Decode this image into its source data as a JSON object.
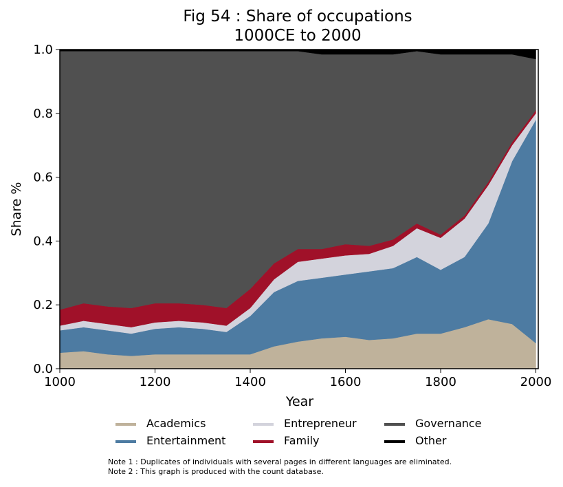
{
  "chart_data": {
    "type": "area",
    "stacked": true,
    "title": "Fig 54 : Share of occupations",
    "subtitle": "1000CE to 2000",
    "xlabel": "Year",
    "ylabel": "Share %",
    "xlim": [
      1000,
      2005
    ],
    "ylim": [
      0,
      1
    ],
    "xticks": [
      "1000",
      "1200",
      "1400",
      "1600",
      "1800",
      "2000"
    ],
    "yticks": [
      "0.0",
      "0.2",
      "0.4",
      "0.6",
      "0.8",
      "1.0"
    ],
    "grid": false,
    "legend_position": "bottom",
    "x": [
      1000,
      1050,
      1100,
      1150,
      1200,
      1250,
      1300,
      1350,
      1400,
      1450,
      1500,
      1550,
      1600,
      1650,
      1700,
      1750,
      1800,
      1850,
      1900,
      1950,
      2000
    ],
    "series": [
      {
        "name": "Academics",
        "color": "#bfb29b",
        "values": [
          0.05,
          0.055,
          0.045,
          0.04,
          0.045,
          0.045,
          0.045,
          0.045,
          0.045,
          0.07,
          0.085,
          0.095,
          0.1,
          0.09,
          0.095,
          0.11,
          0.11,
          0.13,
          0.155,
          0.14,
          0.08
        ]
      },
      {
        "name": "Entertainment",
        "color": "#4d7ba2",
        "values": [
          0.07,
          0.075,
          0.075,
          0.07,
          0.08,
          0.085,
          0.08,
          0.07,
          0.12,
          0.17,
          0.19,
          0.19,
          0.195,
          0.215,
          0.22,
          0.24,
          0.2,
          0.22,
          0.3,
          0.51,
          0.7
        ]
      },
      {
        "name": "Entrepreneur",
        "color": "#d3d3dc",
        "values": [
          0.015,
          0.02,
          0.02,
          0.02,
          0.02,
          0.02,
          0.02,
          0.02,
          0.025,
          0.04,
          0.06,
          0.06,
          0.06,
          0.055,
          0.07,
          0.09,
          0.1,
          0.12,
          0.12,
          0.05,
          0.02
        ]
      },
      {
        "name": "Family",
        "color": "#a01129",
        "values": [
          0.05,
          0.055,
          0.055,
          0.06,
          0.06,
          0.055,
          0.055,
          0.055,
          0.06,
          0.05,
          0.04,
          0.03,
          0.035,
          0.025,
          0.02,
          0.015,
          0.01,
          0.01,
          0.01,
          0.01,
          0.01
        ]
      },
      {
        "name": "Governance",
        "color": "#505050",
        "values": [
          0.81,
          0.79,
          0.8,
          0.805,
          0.79,
          0.79,
          0.795,
          0.805,
          0.745,
          0.665,
          0.62,
          0.61,
          0.595,
          0.6,
          0.58,
          0.54,
          0.565,
          0.505,
          0.4,
          0.275,
          0.16
        ]
      },
      {
        "name": "Other",
        "color": "#000000",
        "values": [
          0.005,
          0.005,
          0.005,
          0.005,
          0.005,
          0.005,
          0.005,
          0.005,
          0.005,
          0.005,
          0.005,
          0.015,
          0.015,
          0.015,
          0.015,
          0.005,
          0.015,
          0.015,
          0.015,
          0.015,
          0.03
        ]
      }
    ]
  },
  "notes": {
    "note1": "Note 1 : Duplicates of individuals with several pages in different languages are eliminated.",
    "note2": "Note 2 : This graph is produced with the count database."
  }
}
